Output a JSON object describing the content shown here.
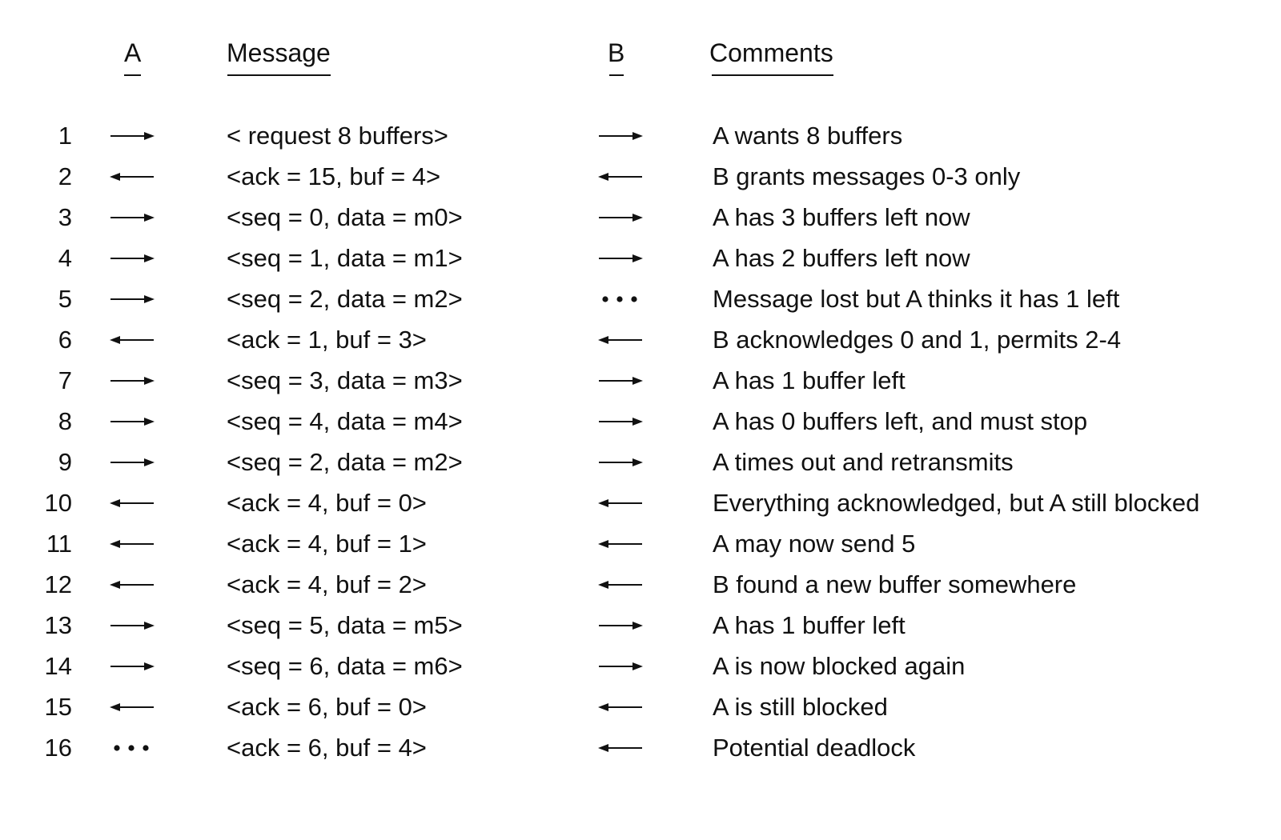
{
  "headers": {
    "a": "A",
    "message": "Message",
    "b": "B",
    "comments": "Comments"
  },
  "rows": [
    {
      "num": "1",
      "a": "right",
      "message": "< request 8 buffers>",
      "b": "right",
      "comment": "A wants 8 buffers"
    },
    {
      "num": "2",
      "a": "left",
      "message": "<ack = 15, buf = 4>",
      "b": "left",
      "comment": "B grants messages 0-3 only"
    },
    {
      "num": "3",
      "a": "right",
      "message": "<seq = 0, data = m0>",
      "b": "right",
      "comment": "A has 3 buffers left now"
    },
    {
      "num": "4",
      "a": "right",
      "message": "<seq = 1, data = m1>",
      "b": "right",
      "comment": "A has 2 buffers left now"
    },
    {
      "num": "5",
      "a": "right",
      "message": "<seq = 2, data = m2>",
      "b": "lost",
      "comment": "Message lost but A thinks it has 1 left"
    },
    {
      "num": "6",
      "a": "left",
      "message": "<ack = 1, buf = 3>",
      "b": "left",
      "comment": "B acknowledges 0 and 1, permits 2-4"
    },
    {
      "num": "7",
      "a": "right",
      "message": "<seq = 3, data = m3>",
      "b": "right",
      "comment": "A has 1 buffer left"
    },
    {
      "num": "8",
      "a": "right",
      "message": "<seq = 4, data = m4>",
      "b": "right",
      "comment": "A has 0 buffers left, and must stop"
    },
    {
      "num": "9",
      "a": "right",
      "message": "<seq = 2, data = m2>",
      "b": "right",
      "comment": "A times out and retransmits"
    },
    {
      "num": "10",
      "a": "left",
      "message": "<ack = 4, buf = 0>",
      "b": "left",
      "comment": "Everything acknowledged, but A still blocked"
    },
    {
      "num": "11",
      "a": "left",
      "message": "<ack = 4, buf = 1>",
      "b": "left",
      "comment": "A may now send 5"
    },
    {
      "num": "12",
      "a": "left",
      "message": "<ack = 4, buf = 2>",
      "b": "left",
      "comment": "B found a new buffer somewhere"
    },
    {
      "num": "13",
      "a": "right",
      "message": "<seq = 5, data = m5>",
      "b": "right",
      "comment": "A has 1 buffer left"
    },
    {
      "num": "14",
      "a": "right",
      "message": "<seq = 6, data = m6>",
      "b": "right",
      "comment": "A is now blocked again"
    },
    {
      "num": "15",
      "a": "left",
      "message": "<ack = 6, buf = 0>",
      "b": "left",
      "comment": "A is still blocked"
    },
    {
      "num": "16",
      "a": "lost",
      "message": "<ack = 6, buf = 4>",
      "b": "left",
      "comment": "Potential deadlock"
    }
  ]
}
